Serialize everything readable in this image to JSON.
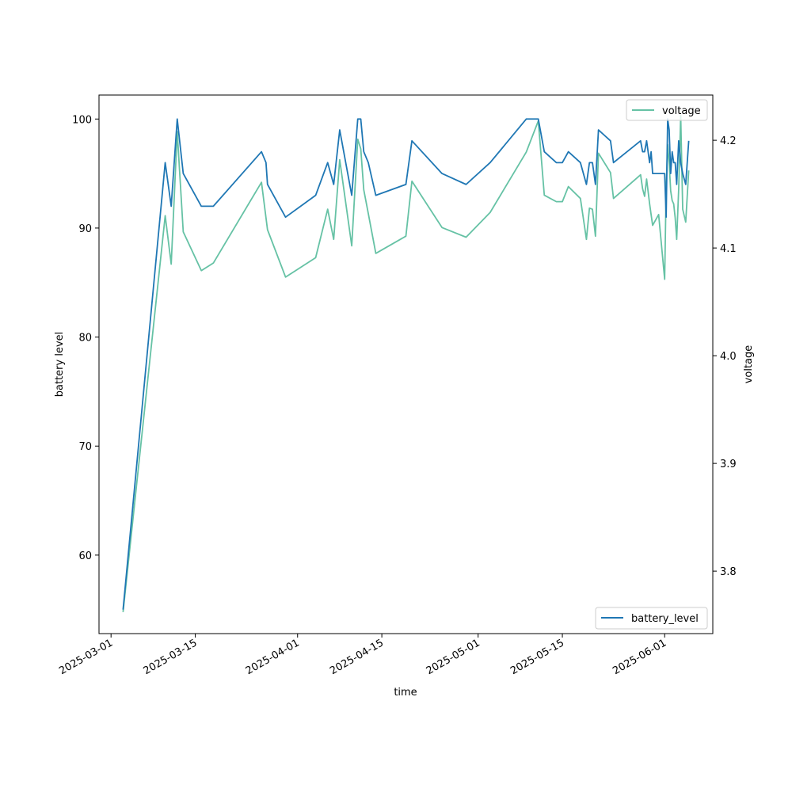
{
  "chart_data": {
    "type": "line",
    "title": "",
    "xlabel": "time",
    "ylabel_left": "battery level",
    "ylabel_right": "voltage",
    "xlim": [
      "2025-02-27",
      "2025-06-09"
    ],
    "ylim_left": [
      52.8,
      102.2
    ],
    "ylim_right": [
      3.742,
      4.242
    ],
    "x_ticks": [
      "2025-03-01",
      "2025-03-15",
      "2025-04-01",
      "2025-04-15",
      "2025-05-01",
      "2025-05-15",
      "2025-06-01"
    ],
    "y_ticks_left": [
      60,
      70,
      80,
      90,
      100
    ],
    "y_ticks_right": [
      3.8,
      3.9,
      4.0,
      4.1,
      4.2
    ],
    "grid": false,
    "legends": [
      {
        "position": "top-right",
        "entries": [
          "voltage"
        ]
      },
      {
        "position": "bottom-right",
        "entries": [
          "battery_level"
        ]
      }
    ],
    "series": [
      {
        "name": "battery_level",
        "axis": "left",
        "color": "#1f77b4",
        "points": [
          [
            "2025-03-03",
            55
          ],
          [
            "2025-03-10",
            96
          ],
          [
            "2025-03-11",
            92
          ],
          [
            "2025-03-12",
            100
          ],
          [
            "2025-03-13",
            95
          ],
          [
            "2025-03-16",
            92
          ],
          [
            "2025-03-18",
            92
          ],
          [
            "2025-03-26",
            97
          ],
          [
            "2025-03-26T18:00",
            96
          ],
          [
            "2025-03-27",
            94
          ],
          [
            "2025-03-30",
            91
          ],
          [
            "2025-04-04",
            93
          ],
          [
            "2025-04-06",
            96
          ],
          [
            "2025-04-07",
            94
          ],
          [
            "2025-04-08",
            99
          ],
          [
            "2025-04-10",
            93
          ],
          [
            "2025-04-11",
            100
          ],
          [
            "2025-04-11T12:00",
            100
          ],
          [
            "2025-04-12",
            97
          ],
          [
            "2025-04-12T18:00",
            96
          ],
          [
            "2025-04-14",
            93
          ],
          [
            "2025-04-19",
            94
          ],
          [
            "2025-04-20",
            98
          ],
          [
            "2025-04-25",
            95
          ],
          [
            "2025-04-29",
            94
          ],
          [
            "2025-05-03",
            96
          ],
          [
            "2025-05-09",
            100
          ],
          [
            "2025-05-11",
            100
          ],
          [
            "2025-05-12",
            97
          ],
          [
            "2025-05-14",
            96
          ],
          [
            "2025-05-15",
            96
          ],
          [
            "2025-05-16",
            97
          ],
          [
            "2025-05-18",
            96
          ],
          [
            "2025-05-19",
            94
          ],
          [
            "2025-05-19T12:00",
            96
          ],
          [
            "2025-05-20",
            96
          ],
          [
            "2025-05-20T12:00",
            94
          ],
          [
            "2025-05-21",
            99
          ],
          [
            "2025-05-23",
            98
          ],
          [
            "2025-05-23T12:00",
            96
          ],
          [
            "2025-05-28",
            98
          ],
          [
            "2025-05-28T08:00",
            97
          ],
          [
            "2025-05-28T16:00",
            97
          ],
          [
            "2025-05-29",
            98
          ],
          [
            "2025-05-29T12:00",
            96
          ],
          [
            "2025-05-29T18:00",
            97
          ],
          [
            "2025-05-30",
            95
          ],
          [
            "2025-05-31",
            95
          ],
          [
            "2025-06-01",
            95
          ],
          [
            "2025-06-01T06:00",
            91
          ],
          [
            "2025-06-01T12:00",
            100
          ],
          [
            "2025-06-01T18:00",
            99
          ],
          [
            "2025-06-02",
            95
          ],
          [
            "2025-06-02T06:00",
            97
          ],
          [
            "2025-06-02T12:00",
            96
          ],
          [
            "2025-06-02T18:00",
            96
          ],
          [
            "2025-06-03",
            94
          ],
          [
            "2025-06-03T08:00",
            98
          ],
          [
            "2025-06-03T16:00",
            96
          ],
          [
            "2025-06-04",
            95
          ],
          [
            "2025-06-04T12:00",
            94
          ],
          [
            "2025-06-05",
            98
          ]
        ]
      },
      {
        "name": "voltage",
        "axis": "right",
        "color": "#66c2a5",
        "points": [
          [
            "2025-03-03",
            3.762
          ],
          [
            "2025-03-10",
            4.13
          ],
          [
            "2025-03-11",
            4.085
          ],
          [
            "2025-03-12",
            4.208
          ],
          [
            "2025-03-13",
            4.115
          ],
          [
            "2025-03-16",
            4.079
          ],
          [
            "2025-03-18",
            4.086
          ],
          [
            "2025-03-26",
            4.161
          ],
          [
            "2025-03-27",
            4.117
          ],
          [
            "2025-03-30",
            4.073
          ],
          [
            "2025-04-04",
            4.091
          ],
          [
            "2025-04-06",
            4.136
          ],
          [
            "2025-04-07",
            4.108
          ],
          [
            "2025-04-08",
            4.182
          ],
          [
            "2025-04-10",
            4.102
          ],
          [
            "2025-04-11",
            4.201
          ],
          [
            "2025-04-11T12:00",
            4.192
          ],
          [
            "2025-04-12",
            4.154
          ],
          [
            "2025-04-12T18:00",
            4.132
          ],
          [
            "2025-04-14",
            4.095
          ],
          [
            "2025-04-19",
            4.111
          ],
          [
            "2025-04-20",
            4.162
          ],
          [
            "2025-04-25",
            4.119
          ],
          [
            "2025-04-29",
            4.11
          ],
          [
            "2025-05-03",
            4.133
          ],
          [
            "2025-05-09",
            4.189
          ],
          [
            "2025-05-11",
            4.218
          ],
          [
            "2025-05-12",
            4.149
          ],
          [
            "2025-05-14",
            4.143
          ],
          [
            "2025-05-15",
            4.143
          ],
          [
            "2025-05-16",
            4.157
          ],
          [
            "2025-05-18",
            4.146
          ],
          [
            "2025-05-19",
            4.108
          ],
          [
            "2025-05-19T12:00",
            4.137
          ],
          [
            "2025-05-20",
            4.136
          ],
          [
            "2025-05-20T12:00",
            4.111
          ],
          [
            "2025-05-21",
            4.188
          ],
          [
            "2025-05-23",
            4.17
          ],
          [
            "2025-05-23T12:00",
            4.146
          ],
          [
            "2025-05-28",
            4.168
          ],
          [
            "2025-05-28T08:00",
            4.155
          ],
          [
            "2025-05-28T16:00",
            4.148
          ],
          [
            "2025-05-29",
            4.164
          ],
          [
            "2025-05-29T12:00",
            4.141
          ],
          [
            "2025-05-29T18:00",
            4.131
          ],
          [
            "2025-05-30",
            4.121
          ],
          [
            "2025-05-31",
            4.131
          ],
          [
            "2025-06-01",
            4.071
          ],
          [
            "2025-06-01T06:00",
            4.156
          ],
          [
            "2025-06-01T12:00",
            4.196
          ],
          [
            "2025-06-01T18:00",
            4.179
          ],
          [
            "2025-06-02",
            4.153
          ],
          [
            "2025-06-02T06:00",
            4.144
          ],
          [
            "2025-06-02T12:00",
            4.141
          ],
          [
            "2025-06-02T18:00",
            4.128
          ],
          [
            "2025-06-03",
            4.108
          ],
          [
            "2025-06-03T08:00",
            4.155
          ],
          [
            "2025-06-03T16:00",
            4.223
          ],
          [
            "2025-06-04",
            4.136
          ],
          [
            "2025-06-04T12:00",
            4.124
          ],
          [
            "2025-06-05",
            4.172
          ]
        ]
      }
    ]
  }
}
